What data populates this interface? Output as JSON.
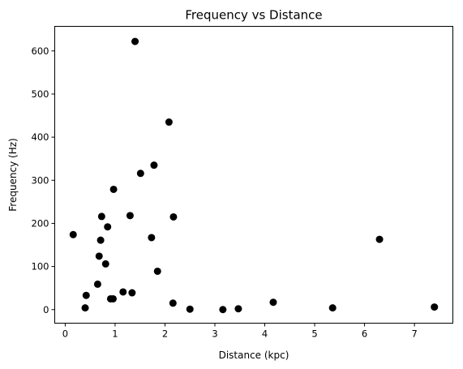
{
  "chart_data": {
    "type": "scatter",
    "title": "Frequency vs Distance",
    "xlabel": "Distance (kpc)",
    "ylabel": "Frequency (Hz)",
    "xlim": [
      -0.21,
      7.77
    ],
    "ylim": [
      -31.5,
      657
    ],
    "xticks": [
      0,
      1,
      2,
      3,
      4,
      5,
      6,
      7
    ],
    "yticks": [
      0,
      100,
      200,
      300,
      400,
      500,
      600
    ],
    "grid": false,
    "marker_color": "#000000",
    "points": [
      {
        "x": 0.16,
        "y": 174
      },
      {
        "x": 0.4,
        "y": 4
      },
      {
        "x": 0.42,
        "y": 33
      },
      {
        "x": 0.65,
        "y": 59
      },
      {
        "x": 0.68,
        "y": 124
      },
      {
        "x": 0.71,
        "y": 161
      },
      {
        "x": 0.73,
        "y": 216
      },
      {
        "x": 0.81,
        "y": 106
      },
      {
        "x": 0.85,
        "y": 192
      },
      {
        "x": 0.91,
        "y": 25
      },
      {
        "x": 0.96,
        "y": 25
      },
      {
        "x": 0.97,
        "y": 279
      },
      {
        "x": 1.16,
        "y": 41
      },
      {
        "x": 1.3,
        "y": 218
      },
      {
        "x": 1.34,
        "y": 39
      },
      {
        "x": 1.4,
        "y": 622
      },
      {
        "x": 1.51,
        "y": 316
      },
      {
        "x": 1.73,
        "y": 167
      },
      {
        "x": 1.78,
        "y": 335
      },
      {
        "x": 1.85,
        "y": 89
      },
      {
        "x": 2.08,
        "y": 435
      },
      {
        "x": 2.16,
        "y": 15
      },
      {
        "x": 2.17,
        "y": 215
      },
      {
        "x": 2.5,
        "y": 1
      },
      {
        "x": 3.16,
        "y": 0
      },
      {
        "x": 3.47,
        "y": 2
      },
      {
        "x": 4.17,
        "y": 17
      },
      {
        "x": 5.36,
        "y": 4
      },
      {
        "x": 6.3,
        "y": 163
      },
      {
        "x": 7.4,
        "y": 6
      }
    ]
  }
}
